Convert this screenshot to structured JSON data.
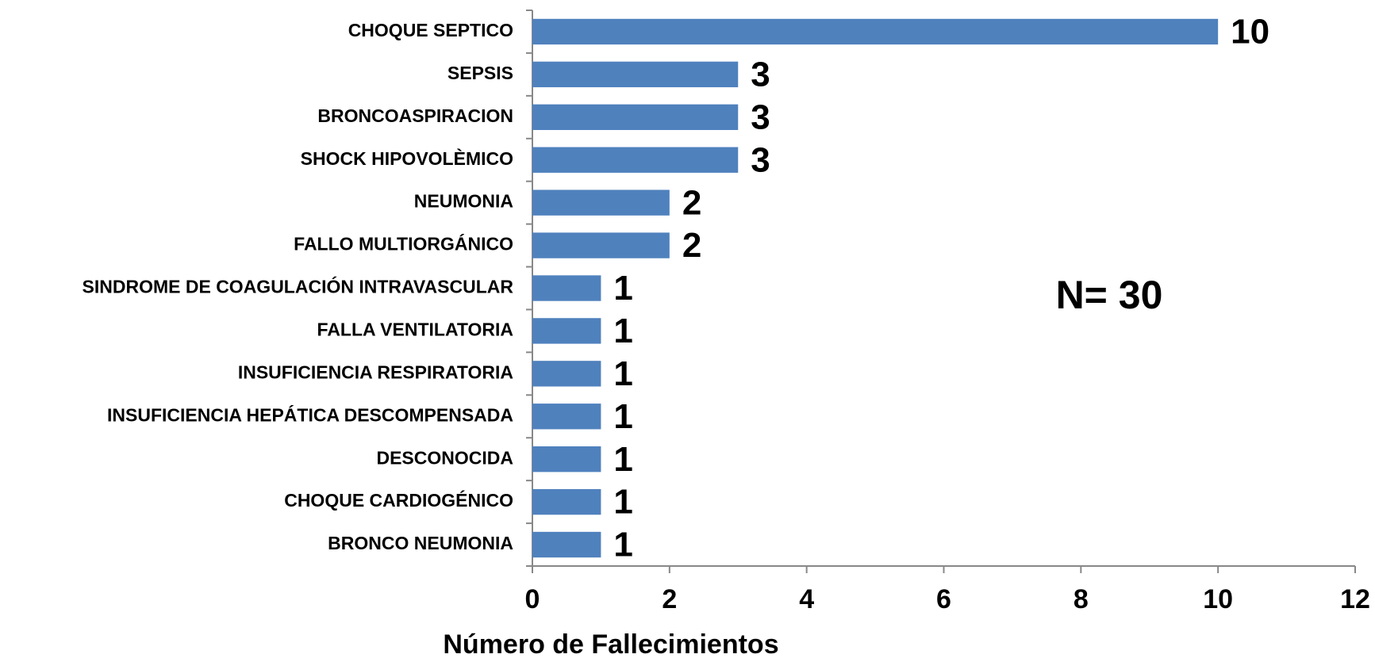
{
  "chart_data": {
    "type": "bar",
    "orientation": "horizontal",
    "categories": [
      "CHOQUE SEPTICO",
      "SEPSIS",
      "BRONCOASPIRACION",
      "SHOCK HIPOVOLÈMICO",
      "NEUMONIA",
      "FALLO MULTIORGÁNICO",
      "SINDROME DE COAGULACIÓN INTRAVASCULAR",
      "FALLA VENTILATORIA",
      "INSUFICIENCIA RESPIRATORIA",
      "INSUFICIENCIA HEPÁTICA DESCOMPENSADA",
      "DESCONOCIDA",
      "CHOQUE CARDIOGÉNICO",
      "BRONCO NEUMONIA"
    ],
    "values": [
      10,
      3,
      3,
      3,
      2,
      2,
      1,
      1,
      1,
      1,
      1,
      1,
      1
    ],
    "color": "#4f81bd",
    "xlabel": "Número de Fallecimientos",
    "xlim": [
      0,
      12
    ],
    "xticks": [
      0,
      2,
      4,
      6,
      8,
      10,
      12
    ],
    "annotation": "N= 30",
    "grid": false
  }
}
